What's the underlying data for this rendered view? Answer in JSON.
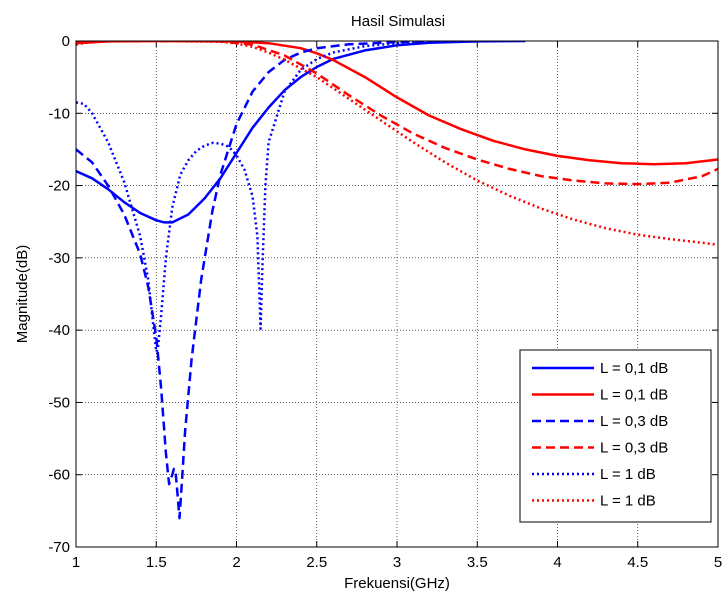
{
  "chart_data": {
    "type": "line",
    "title": "Hasil Simulasi",
    "xlabel": "Frekuensi(GHz)",
    "ylabel": "Magnitude(dB)",
    "xlim": [
      1,
      5
    ],
    "ylim": [
      -70,
      0
    ],
    "xticks": [
      "1",
      "1.5",
      "2",
      "2.5",
      "3",
      "3.5",
      "4",
      "4.5",
      "5"
    ],
    "yticks": [
      "0",
      "-10",
      "-20",
      "-30",
      "-40",
      "-50",
      "-60",
      "-70"
    ],
    "grid": true,
    "legend_position": "bottom-right",
    "series": [
      {
        "name": "L = 0,1 dB",
        "color": "#0000ff",
        "style": "solid",
        "points": [
          [
            1.0,
            -18
          ],
          [
            1.1,
            -19
          ],
          [
            1.2,
            -20.5
          ],
          [
            1.3,
            -22.3
          ],
          [
            1.4,
            -23.8
          ],
          [
            1.5,
            -24.8
          ],
          [
            1.55,
            -25.1
          ],
          [
            1.6,
            -25.1
          ],
          [
            1.7,
            -24
          ],
          [
            1.8,
            -21.8
          ],
          [
            1.9,
            -19
          ],
          [
            2.0,
            -15.5
          ],
          [
            2.1,
            -12
          ],
          [
            2.2,
            -9.2
          ],
          [
            2.3,
            -6.8
          ],
          [
            2.4,
            -5
          ],
          [
            2.5,
            -3.6
          ],
          [
            2.6,
            -2.5
          ],
          [
            2.8,
            -1.3
          ],
          [
            3.0,
            -0.6
          ],
          [
            3.2,
            -0.25
          ],
          [
            3.5,
            -0.06
          ],
          [
            3.8,
            0
          ]
        ]
      },
      {
        "name": "L = 0,1 dB",
        "color": "#ff0000",
        "style": "solid",
        "points": [
          [
            1.0,
            -0.3
          ],
          [
            1.2,
            -0.05
          ],
          [
            1.5,
            0
          ],
          [
            2.0,
            -0.05
          ],
          [
            2.2,
            -0.3
          ],
          [
            2.4,
            -1
          ],
          [
            2.5,
            -1.7
          ],
          [
            2.6,
            -2.6
          ],
          [
            2.8,
            -5
          ],
          [
            3.0,
            -7.8
          ],
          [
            3.2,
            -10.3
          ],
          [
            3.4,
            -12.2
          ],
          [
            3.6,
            -13.8
          ],
          [
            3.8,
            -15
          ],
          [
            4.0,
            -15.9
          ],
          [
            4.2,
            -16.5
          ],
          [
            4.4,
            -16.9
          ],
          [
            4.6,
            -17.05
          ],
          [
            4.8,
            -16.9
          ],
          [
            5.0,
            -16.4
          ]
        ]
      },
      {
        "name": "L = 0,3 dB",
        "color": "#0000ff",
        "style": "dashed",
        "points": [
          [
            1.0,
            -15
          ],
          [
            1.1,
            -16.8
          ],
          [
            1.2,
            -20
          ],
          [
            1.3,
            -24
          ],
          [
            1.4,
            -29.5
          ],
          [
            1.45,
            -34
          ],
          [
            1.5,
            -41
          ],
          [
            1.53,
            -48
          ],
          [
            1.56,
            -57
          ],
          [
            1.58,
            -61.3
          ],
          [
            1.6,
            -60
          ],
          [
            1.61,
            -59.2
          ],
          [
            1.62,
            -59.5
          ],
          [
            1.63,
            -62
          ],
          [
            1.645,
            -66
          ],
          [
            1.66,
            -61
          ],
          [
            1.68,
            -54
          ],
          [
            1.72,
            -44
          ],
          [
            1.78,
            -33
          ],
          [
            1.85,
            -23.5
          ],
          [
            1.9,
            -18.5
          ],
          [
            2.0,
            -11.5
          ],
          [
            2.1,
            -7
          ],
          [
            2.2,
            -4.3
          ],
          [
            2.3,
            -2.6
          ],
          [
            2.4,
            -1.6
          ],
          [
            2.5,
            -1
          ],
          [
            2.7,
            -0.45
          ],
          [
            3.0,
            -0.15
          ],
          [
            3.5,
            0
          ]
        ]
      },
      {
        "name": "L = 0,3 dB",
        "color": "#ff0000",
        "style": "dashed",
        "points": [
          [
            1.0,
            -0.05
          ],
          [
            1.5,
            0
          ],
          [
            1.9,
            -0.05
          ],
          [
            2.1,
            -0.5
          ],
          [
            2.3,
            -2
          ],
          [
            2.5,
            -4.5
          ],
          [
            2.7,
            -7.5
          ],
          [
            2.9,
            -10.3
          ],
          [
            3.1,
            -12.8
          ],
          [
            3.3,
            -14.8
          ],
          [
            3.5,
            -16.4
          ],
          [
            3.7,
            -17.7
          ],
          [
            3.9,
            -18.7
          ],
          [
            4.1,
            -19.3
          ],
          [
            4.3,
            -19.7
          ],
          [
            4.5,
            -19.8
          ],
          [
            4.7,
            -19.6
          ],
          [
            4.9,
            -18.7
          ],
          [
            5.0,
            -17.7
          ]
        ]
      },
      {
        "name": "L = 1 dB",
        "color": "#0000ff",
        "style": "dotted",
        "points": [
          [
            1.0,
            -8.5
          ],
          [
            1.05,
            -8.7
          ],
          [
            1.1,
            -10
          ],
          [
            1.2,
            -14
          ],
          [
            1.3,
            -19.5
          ],
          [
            1.4,
            -27
          ],
          [
            1.45,
            -33
          ],
          [
            1.48,
            -39
          ],
          [
            1.5,
            -43
          ],
          [
            1.51,
            -42.5
          ],
          [
            1.53,
            -38
          ],
          [
            1.56,
            -30
          ],
          [
            1.6,
            -23
          ],
          [
            1.65,
            -18.5
          ],
          [
            1.7,
            -16.5
          ],
          [
            1.75,
            -15.2
          ],
          [
            1.8,
            -14.5
          ],
          [
            1.85,
            -14.1
          ],
          [
            1.9,
            -14.2
          ],
          [
            1.95,
            -14.6
          ],
          [
            2.0,
            -15.8
          ],
          [
            2.05,
            -17.8
          ],
          [
            2.1,
            -21.5
          ],
          [
            2.13,
            -27
          ],
          [
            2.15,
            -39.8
          ],
          [
            2.16,
            -32
          ],
          [
            2.18,
            -20
          ],
          [
            2.2,
            -14
          ],
          [
            2.3,
            -7
          ],
          [
            2.4,
            -4
          ],
          [
            2.5,
            -2.5
          ],
          [
            2.6,
            -1.6
          ],
          [
            2.8,
            -0.7
          ],
          [
            3.0,
            -0.3
          ],
          [
            3.3,
            -0.1
          ],
          [
            3.6,
            0
          ]
        ]
      },
      {
        "name": "L = 1 dB",
        "color": "#ff0000",
        "style": "dotted",
        "points": [
          [
            1.0,
            -0.5
          ],
          [
            1.1,
            -0.05
          ],
          [
            1.5,
            0
          ],
          [
            1.9,
            -0.1
          ],
          [
            2.0,
            -0.35
          ],
          [
            2.1,
            -0.8
          ],
          [
            2.2,
            -1.6
          ],
          [
            2.3,
            -2.6
          ],
          [
            2.5,
            -5
          ],
          [
            2.7,
            -8
          ],
          [
            2.9,
            -11
          ],
          [
            3.1,
            -14
          ],
          [
            3.3,
            -16.8
          ],
          [
            3.5,
            -19.3
          ],
          [
            3.7,
            -21.4
          ],
          [
            3.9,
            -23.2
          ],
          [
            4.1,
            -24.7
          ],
          [
            4.3,
            -25.9
          ],
          [
            4.5,
            -26.8
          ],
          [
            4.7,
            -27.4
          ],
          [
            4.9,
            -27.9
          ],
          [
            5.0,
            -28.2
          ]
        ]
      }
    ]
  }
}
